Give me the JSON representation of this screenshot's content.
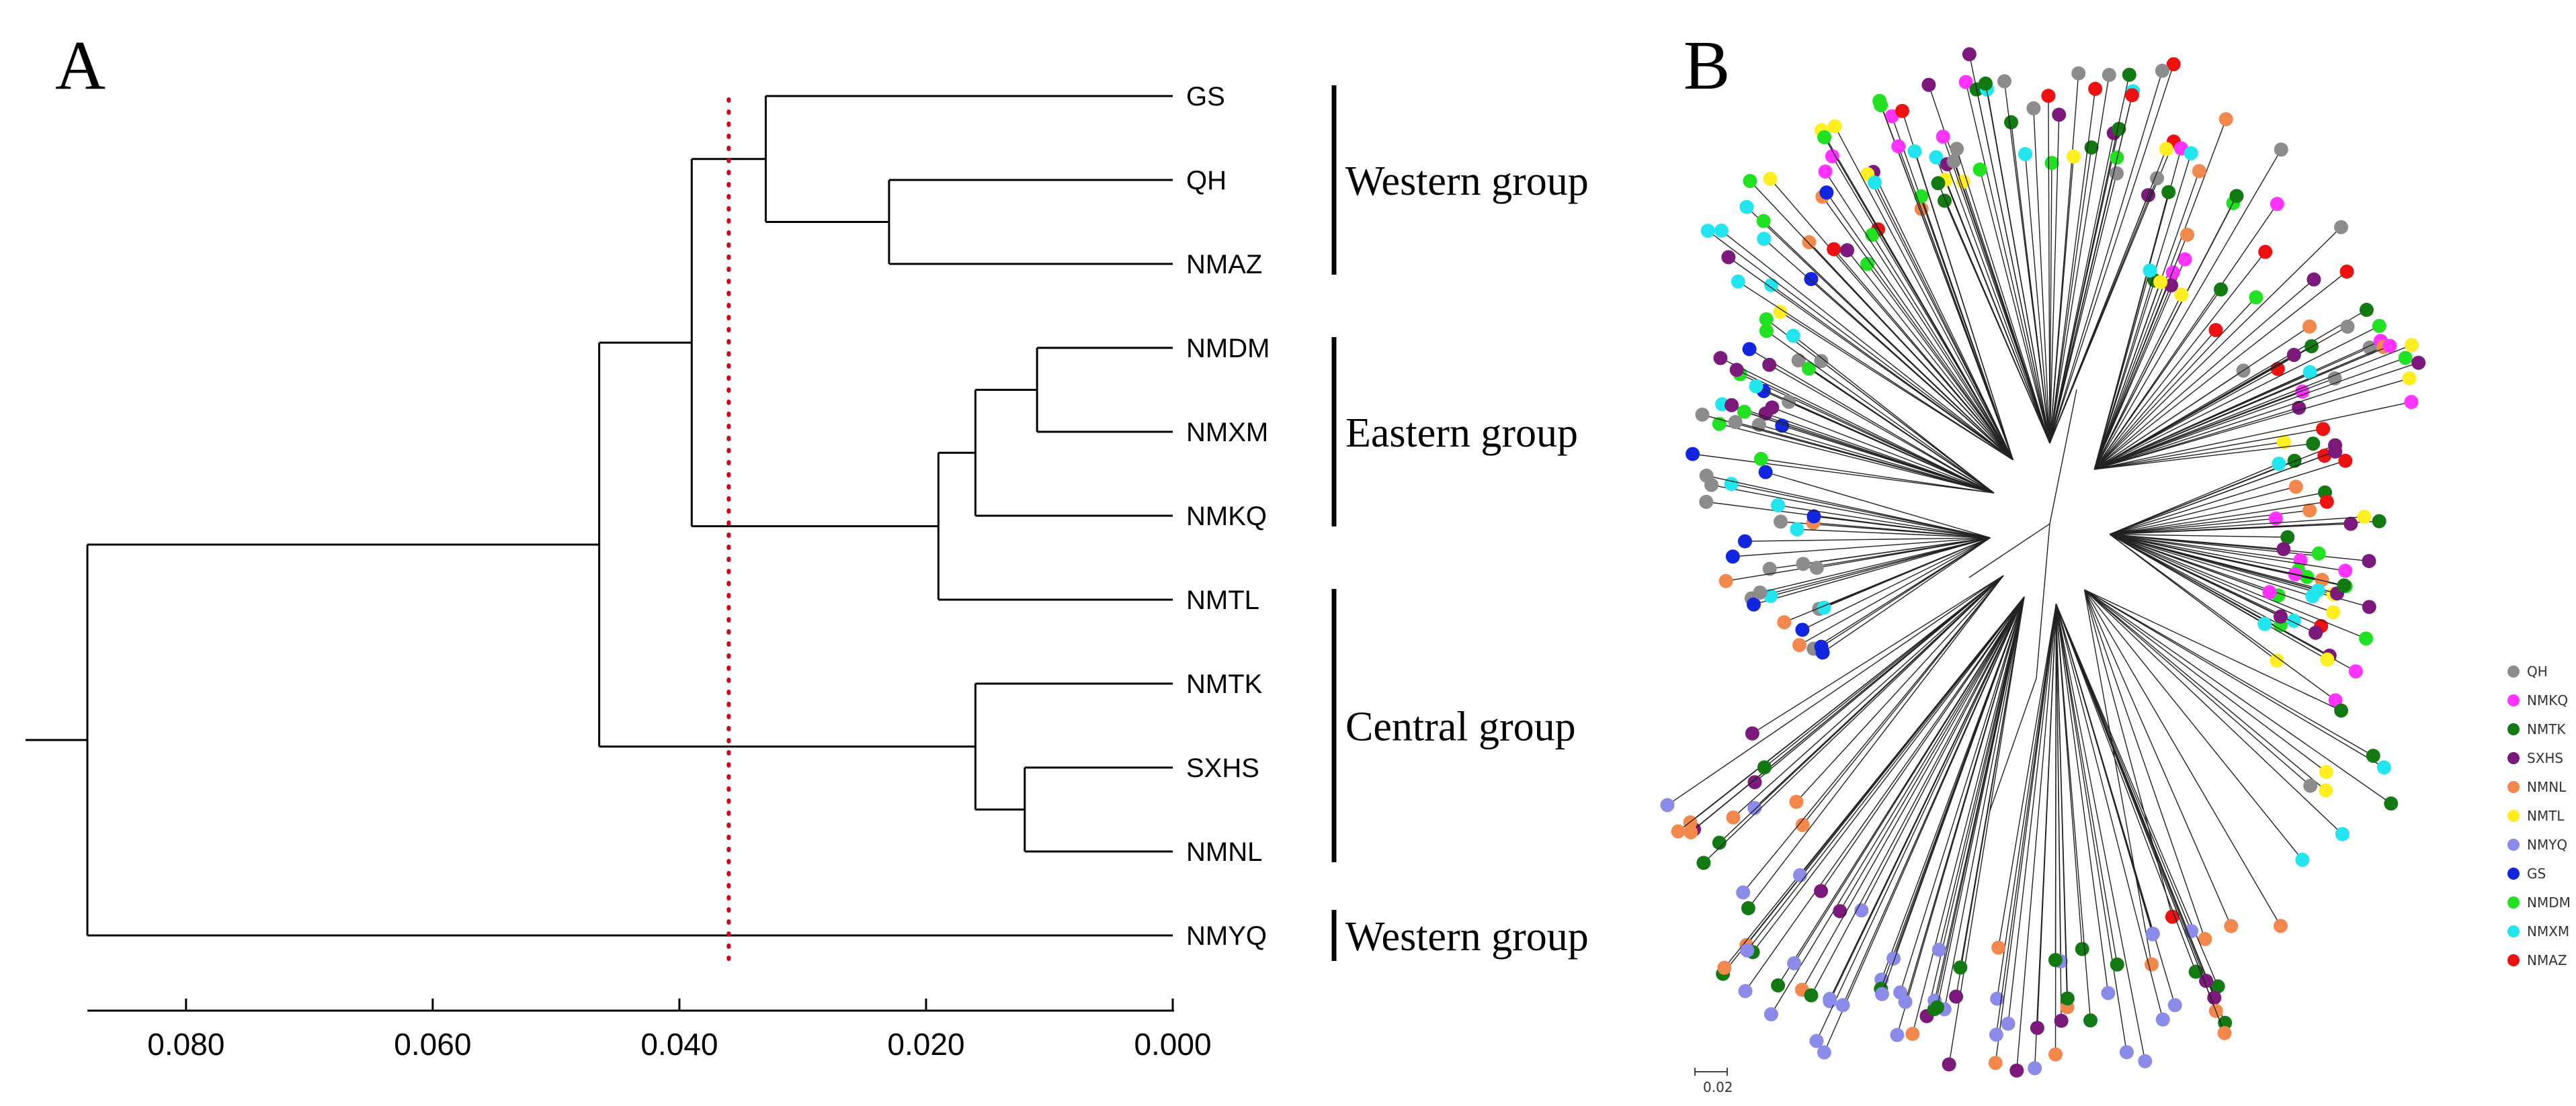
{
  "panel_a": {
    "letter": "A",
    "leaves": [
      "GS",
      "QH",
      "NMAZ",
      "NMDM",
      "NMXM",
      "NMKQ",
      "NMTL",
      "NMTK",
      "SXHS",
      "NMNL",
      "NMYQ"
    ],
    "groups": [
      {
        "name": "Western group",
        "members": [
          "GS",
          "QH",
          "NMAZ"
        ]
      },
      {
        "name": "Eastern group",
        "members": [
          "NMDM",
          "NMXM",
          "NMKQ"
        ]
      },
      {
        "name": "Central group",
        "members": [
          "NMTL",
          "NMTK",
          "SXHS",
          "NMNL"
        ]
      },
      {
        "name": "Western group",
        "members": [
          "NMYQ"
        ]
      }
    ],
    "axis": {
      "ticks": [
        "0.080",
        "0.060",
        "0.040",
        "0.020",
        "0.000"
      ],
      "tick_values": [
        0.08,
        0.06,
        0.04,
        0.02,
        0.0
      ],
      "range": [
        0.0,
        0.088
      ],
      "reversed": true
    },
    "cutoff_line_value": 0.036,
    "cutoff_line_color": "#d0021b",
    "tree": {
      "height": 0.088,
      "children": [
        {
          "height": 0.0465,
          "children": [
            {
              "height": 0.039,
              "children": [
                {
                  "height": 0.033,
                  "children": [
                    {
                      "leaf": "GS"
                    },
                    {
                      "height": 0.023,
                      "children": [
                        {
                          "leaf": "QH"
                        },
                        {
                          "leaf": "NMAZ"
                        }
                      ]
                    }
                  ]
                },
                {
                  "height": 0.019,
                  "children": [
                    {
                      "height": 0.016,
                      "children": [
                        {
                          "height": 0.011,
                          "children": [
                            {
                              "leaf": "NMDM"
                            },
                            {
                              "leaf": "NMXM"
                            }
                          ]
                        },
                        {
                          "leaf": "NMKQ"
                        }
                      ]
                    },
                    {
                      "leaf": "NMTL"
                    }
                  ]
                }
              ]
            },
            {
              "height": 0.016,
              "children": [
                {
                  "leaf": "NMTK"
                },
                {
                  "height": 0.012,
                  "children": [
                    {
                      "leaf": "SXHS"
                    },
                    {
                      "leaf": "NMNL"
                    }
                  ]
                }
              ]
            }
          ]
        },
        {
          "leaf": "NMYQ"
        }
      ]
    }
  },
  "panel_b": {
    "letter": "B",
    "scale_bar_label": "0.02",
    "legend": [
      {
        "name": "QH",
        "color": "#8c8c8c"
      },
      {
        "name": "NMKQ",
        "color": "#ff33ff"
      },
      {
        "name": "NMTK",
        "color": "#137a13"
      },
      {
        "name": "SXHS",
        "color": "#7b1a7b"
      },
      {
        "name": "NMNL",
        "color": "#f2884b"
      },
      {
        "name": "NMTL",
        "color": "#ffee22"
      },
      {
        "name": "NMYQ",
        "color": "#8b8bea"
      },
      {
        "name": "GS",
        "color": "#1226e0"
      },
      {
        "name": "NMDM",
        "color": "#22e022"
      },
      {
        "name": "NMXM",
        "color": "#22e5ee"
      },
      {
        "name": "NMAZ",
        "color": "#ee1111"
      }
    ]
  }
}
